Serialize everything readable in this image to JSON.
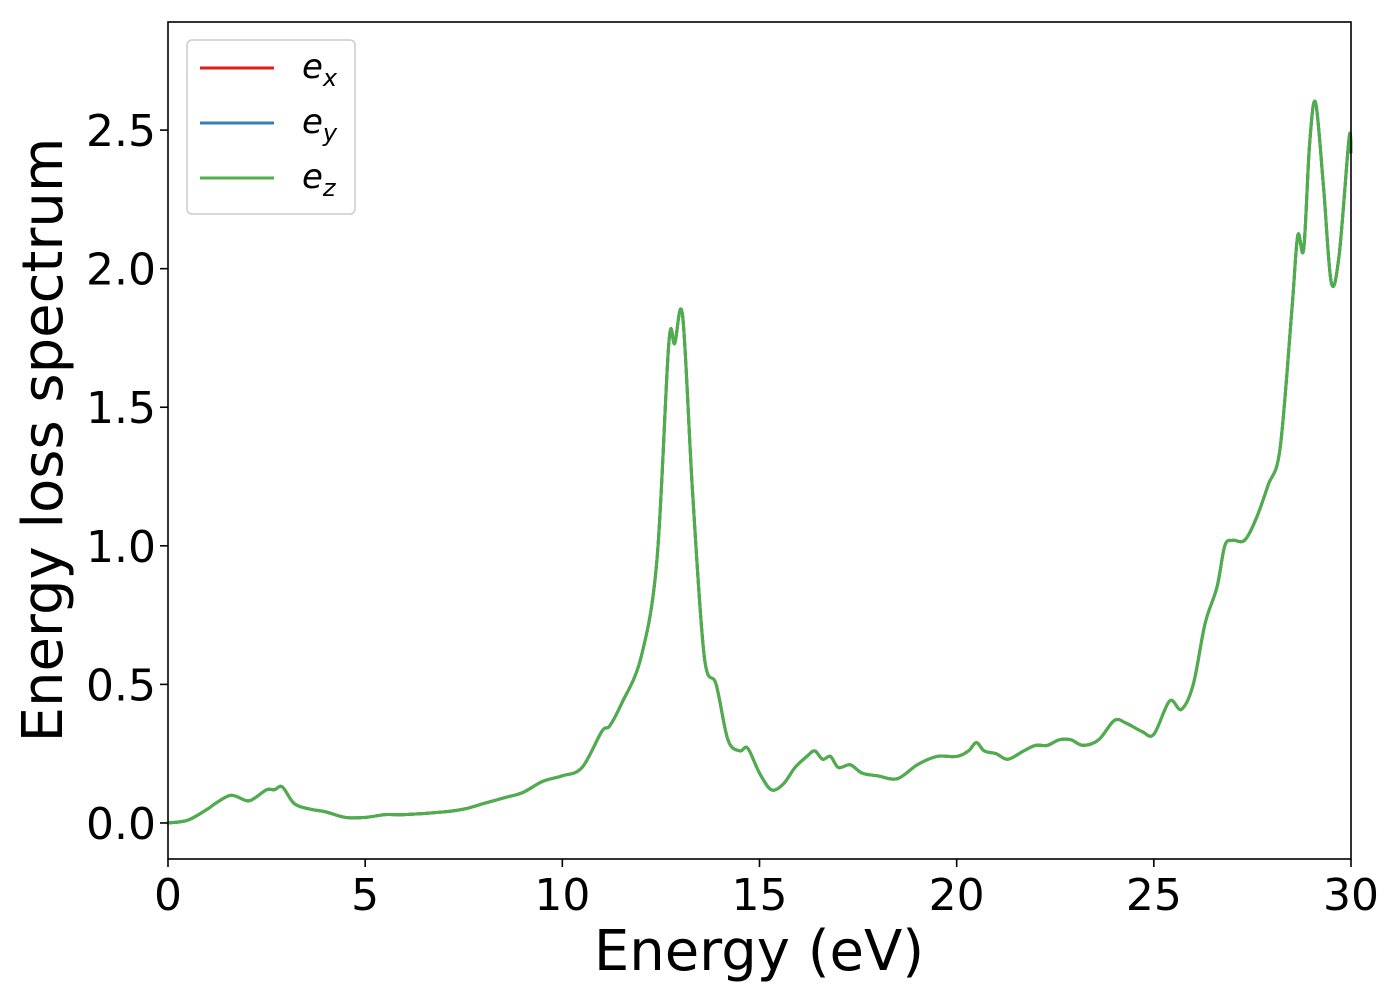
{
  "chart_data": {
    "type": "line",
    "title": "",
    "xlabel": "Energy (eV)",
    "ylabel": "Energy loss spectrum",
    "xlim": [
      0,
      30
    ],
    "ylim": [
      -0.13,
      2.89
    ],
    "xticks": [
      0,
      5,
      10,
      15,
      20,
      25,
      30
    ],
    "yticks": [
      0.0,
      0.5,
      1.0,
      1.5,
      2.0,
      2.5
    ],
    "xtick_labels": [
      "0",
      "5",
      "10",
      "15",
      "20",
      "25",
      "30"
    ],
    "ytick_labels": [
      "0.0",
      "0.5",
      "1.0",
      "1.5",
      "2.0",
      "2.5"
    ],
    "grid": false,
    "legend_position": "top-left",
    "x": [
      0,
      0.5,
      1.0,
      1.2,
      1.6,
      2.0,
      2.2,
      2.5,
      2.7,
      2.9,
      3.2,
      3.6,
      4.0,
      4.5,
      5.0,
      5.5,
      6.0,
      7.0,
      7.5,
      8.0,
      8.5,
      9.0,
      9.5,
      10.0,
      10.5,
      11.0,
      11.2,
      11.5,
      12.0,
      12.4,
      12.7,
      12.85,
      13.05,
      13.3,
      13.6,
      13.9,
      14.2,
      14.5,
      14.7,
      15.0,
      15.3,
      15.6,
      15.9,
      16.2,
      16.4,
      16.6,
      16.8,
      17.0,
      17.3,
      17.6,
      18.0,
      18.5,
      19.0,
      19.5,
      20.0,
      20.3,
      20.5,
      20.7,
      21.0,
      21.3,
      21.7,
      22.0,
      22.3,
      22.6,
      22.9,
      23.2,
      23.6,
      24.0,
      24.3,
      24.7,
      25.0,
      25.4,
      25.7,
      26.0,
      26.3,
      26.6,
      26.8,
      27.0,
      27.3,
      27.6,
      27.9,
      28.2,
      28.5,
      28.65,
      28.8,
      28.95,
      29.1,
      29.3,
      29.5,
      29.7,
      29.95,
      30.0
    ],
    "series": [
      {
        "name": "e_x",
        "color": "#e41a1c",
        "values": [
          0.0,
          0.01,
          0.05,
          0.07,
          0.1,
          0.08,
          0.09,
          0.12,
          0.12,
          0.13,
          0.07,
          0.05,
          0.04,
          0.02,
          0.02,
          0.03,
          0.03,
          0.04,
          0.05,
          0.07,
          0.09,
          0.11,
          0.15,
          0.17,
          0.2,
          0.33,
          0.35,
          0.43,
          0.6,
          0.95,
          1.73,
          1.73,
          1.83,
          1.2,
          0.6,
          0.5,
          0.3,
          0.26,
          0.27,
          0.18,
          0.12,
          0.14,
          0.2,
          0.24,
          0.26,
          0.23,
          0.24,
          0.2,
          0.21,
          0.18,
          0.17,
          0.16,
          0.21,
          0.24,
          0.24,
          0.26,
          0.29,
          0.26,
          0.25,
          0.23,
          0.26,
          0.28,
          0.28,
          0.3,
          0.3,
          0.28,
          0.3,
          0.37,
          0.36,
          0.33,
          0.32,
          0.44,
          0.41,
          0.5,
          0.72,
          0.85,
          1.0,
          1.02,
          1.02,
          1.1,
          1.22,
          1.35,
          1.85,
          2.12,
          2.07,
          2.45,
          2.6,
          2.3,
          1.95,
          2.05,
          2.47,
          2.42
        ]
      },
      {
        "name": "e_y",
        "color": "#377eb8",
        "values": [
          0.0,
          0.01,
          0.05,
          0.07,
          0.1,
          0.08,
          0.09,
          0.12,
          0.12,
          0.13,
          0.07,
          0.05,
          0.04,
          0.02,
          0.02,
          0.03,
          0.03,
          0.04,
          0.05,
          0.07,
          0.09,
          0.11,
          0.15,
          0.17,
          0.2,
          0.33,
          0.35,
          0.43,
          0.6,
          0.95,
          1.73,
          1.73,
          1.83,
          1.2,
          0.6,
          0.5,
          0.3,
          0.26,
          0.27,
          0.18,
          0.12,
          0.14,
          0.2,
          0.24,
          0.26,
          0.23,
          0.24,
          0.2,
          0.21,
          0.18,
          0.17,
          0.16,
          0.21,
          0.24,
          0.24,
          0.26,
          0.29,
          0.26,
          0.25,
          0.23,
          0.26,
          0.28,
          0.28,
          0.3,
          0.3,
          0.28,
          0.3,
          0.37,
          0.36,
          0.33,
          0.32,
          0.44,
          0.41,
          0.5,
          0.72,
          0.85,
          1.0,
          1.02,
          1.02,
          1.1,
          1.22,
          1.35,
          1.85,
          2.12,
          2.07,
          2.45,
          2.6,
          2.3,
          1.95,
          2.05,
          2.47,
          2.42
        ]
      },
      {
        "name": "e_z",
        "color": "#4daf4a",
        "values": [
          0.0,
          0.01,
          0.05,
          0.07,
          0.1,
          0.08,
          0.09,
          0.12,
          0.12,
          0.13,
          0.07,
          0.05,
          0.04,
          0.02,
          0.02,
          0.03,
          0.03,
          0.04,
          0.05,
          0.07,
          0.09,
          0.11,
          0.15,
          0.17,
          0.2,
          0.33,
          0.35,
          0.43,
          0.6,
          0.95,
          1.73,
          1.73,
          1.83,
          1.2,
          0.6,
          0.5,
          0.3,
          0.26,
          0.27,
          0.18,
          0.12,
          0.14,
          0.2,
          0.24,
          0.26,
          0.23,
          0.24,
          0.2,
          0.21,
          0.18,
          0.17,
          0.16,
          0.21,
          0.24,
          0.24,
          0.26,
          0.29,
          0.26,
          0.25,
          0.23,
          0.26,
          0.28,
          0.28,
          0.3,
          0.3,
          0.28,
          0.3,
          0.37,
          0.36,
          0.33,
          0.32,
          0.44,
          0.41,
          0.5,
          0.72,
          0.85,
          1.0,
          1.02,
          1.02,
          1.1,
          1.22,
          1.35,
          1.85,
          2.12,
          2.07,
          2.45,
          2.6,
          2.3,
          1.95,
          2.05,
          2.47,
          2.42
        ]
      }
    ],
    "legend": [
      {
        "base": "e",
        "sub": "x",
        "color": "#e41a1c"
      },
      {
        "base": "e",
        "sub": "y",
        "color": "#377eb8"
      },
      {
        "base": "e",
        "sub": "z",
        "color": "#4daf4a"
      }
    ]
  }
}
